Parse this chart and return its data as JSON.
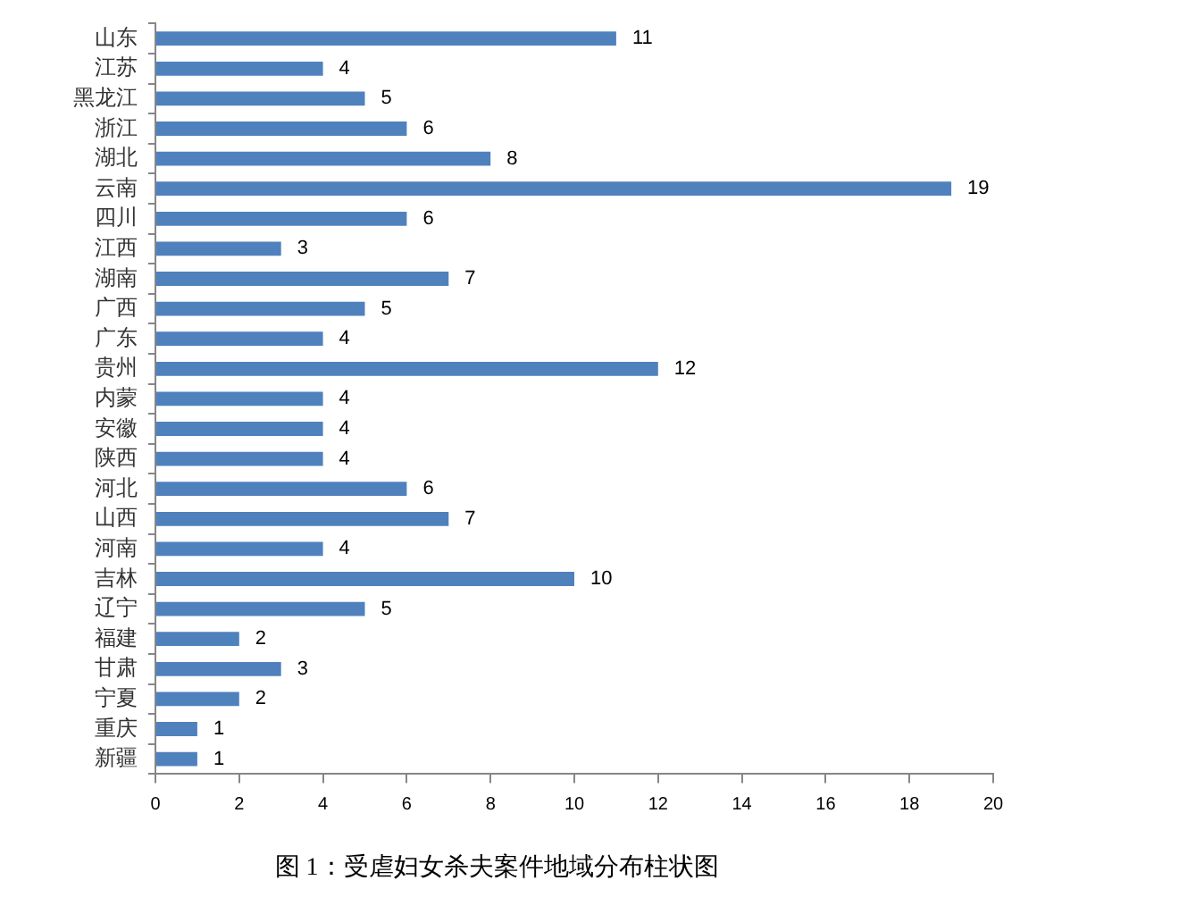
{
  "chart_data": {
    "type": "bar",
    "orientation": "horizontal",
    "title": "图 1：受虐妇女杀夫案件地域分布柱状图",
    "categories": [
      "山东",
      "江苏",
      "黑龙江",
      "浙江",
      "湖北",
      "云南",
      "四川",
      "江西",
      "湖南",
      "广西",
      "广东",
      "贵州",
      "内蒙",
      "安徽",
      "陕西",
      "河北",
      "山西",
      "河南",
      "吉林",
      "辽宁",
      "福建",
      "甘肃",
      "宁夏",
      "重庆",
      "新疆"
    ],
    "values": [
      11,
      4,
      5,
      6,
      8,
      19,
      6,
      3,
      7,
      5,
      4,
      12,
      4,
      4,
      4,
      6,
      7,
      4,
      10,
      5,
      2,
      3,
      2,
      1,
      1
    ],
    "color": "#4f81bd",
    "xlim": [
      0,
      20
    ],
    "xticks": [
      0,
      2,
      4,
      6,
      8,
      10,
      12,
      14,
      16,
      18,
      20
    ],
    "grid": false,
    "legend": false,
    "data_labels": true
  }
}
